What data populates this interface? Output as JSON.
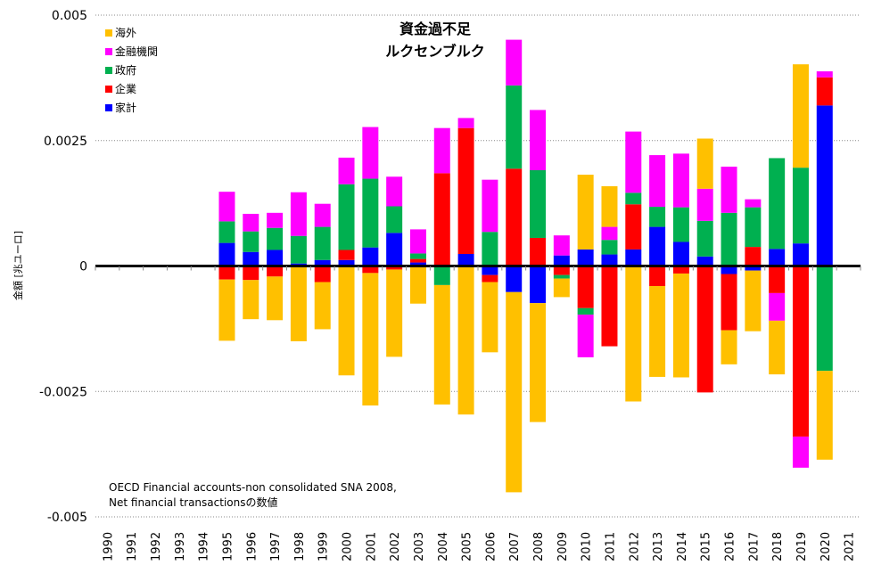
{
  "chart_data": {
    "type": "bar",
    "stacked": true,
    "title": [
      "資金過不足",
      "ルクセンブルク"
    ],
    "ylabel": "金額 [兆ユーロ]",
    "xlabel": "",
    "ylim": [
      -0.005,
      0.005
    ],
    "yticks": [
      0.005,
      0.0025,
      0,
      -0.0025,
      -0.005
    ],
    "ytick_labels": [
      "0.005",
      "0.0025",
      "0",
      "-0.0025",
      "-0.005"
    ],
    "grid": "horizontal dotted",
    "legend_position": "top-left",
    "categories": [
      "1990",
      "1991",
      "1992",
      "1993",
      "1994",
      "1995",
      "1996",
      "1997",
      "1998",
      "1999",
      "2000",
      "2001",
      "2002",
      "2003",
      "2004",
      "2005",
      "2006",
      "2007",
      "2008",
      "2009",
      "2010",
      "2011",
      "2012",
      "2013",
      "2014",
      "2015",
      "2016",
      "2017",
      "2018",
      "2019",
      "2020",
      "2021"
    ],
    "series": [
      {
        "name": "家計",
        "color": "#0000ff",
        "values": [
          null,
          null,
          null,
          null,
          null,
          0.00046,
          0.00028,
          0.00032,
          5e-05,
          0.00012,
          0.00012,
          0.00037,
          0.00066,
          7e-05,
          0,
          0.00024,
          -0.00018,
          -0.00052,
          -0.00074,
          0.00021,
          0.00033,
          0.00023,
          0.00033,
          0.00078,
          0.00048,
          0.00019,
          -0.00016,
          -9e-05,
          0.00034,
          0.00045,
          0.0032,
          null
        ]
      },
      {
        "name": "企業",
        "color": "#ff0000",
        "values": [
          null,
          null,
          null,
          null,
          null,
          -0.00027,
          -0.00028,
          -0.00021,
          0,
          -0.00032,
          0.0002,
          -0.00014,
          -7e-05,
          7e-05,
          0.00185,
          0.00251,
          -0.00014,
          0.00194,
          0.00056,
          -0.00018,
          -0.00084,
          -0.0016,
          0.0009,
          -0.0004,
          -0.00015,
          -0.00252,
          -0.00112,
          0.00038,
          -0.00054,
          -0.0034,
          0.00056,
          null
        ]
      },
      {
        "name": "政府",
        "color": "#00b050",
        "values": [
          null,
          null,
          null,
          null,
          null,
          0.00043,
          0.00041,
          0.00044,
          0.00055,
          0.00066,
          0.00131,
          0.00137,
          0.00053,
          0.00011,
          -0.00038,
          0,
          0.00068,
          0.00166,
          0.00135,
          -7e-05,
          -0.00013,
          0.00029,
          0.00023,
          0.0004,
          0.00069,
          0.00071,
          0.00106,
          0.00079,
          0.00181,
          0.00151,
          -0.00209,
          null
        ]
      },
      {
        "name": "金融機関",
        "color": "#ff00ff",
        "values": [
          null,
          null,
          null,
          null,
          null,
          0.00059,
          0.00035,
          0.0003,
          0.00087,
          0.00046,
          0.00053,
          0.00103,
          0.00059,
          0.00048,
          0.0009,
          0.0002,
          0.00104,
          0.00091,
          0.0012,
          0.0004,
          -0.00085,
          0.00026,
          0.00122,
          0.00103,
          0.00107,
          0.00064,
          0.00092,
          0.00016,
          -0.00055,
          -0.00062,
          0.00012,
          null
        ]
      },
      {
        "name": "海外",
        "color": "#ffc000",
        "values": [
          null,
          null,
          null,
          null,
          null,
          -0.00122,
          -0.00078,
          -0.00087,
          -0.0015,
          -0.00094,
          -0.00218,
          -0.00264,
          -0.00174,
          -0.00075,
          -0.00238,
          -0.00296,
          -0.0014,
          -0.00399,
          -0.00237,
          -0.00037,
          0.00149,
          0.00081,
          -0.0027,
          -0.00181,
          -0.00207,
          0.001,
          -0.00068,
          -0.00121,
          -0.00107,
          0.00206,
          -0.00177,
          null
        ]
      }
    ],
    "legend_order": [
      "海外",
      "金融機関",
      "政府",
      "企業",
      "家計"
    ],
    "annotation": [
      "OECD Financial accounts-non consolidated SNA 2008,",
      "Net financial transactionsの数値"
    ]
  }
}
